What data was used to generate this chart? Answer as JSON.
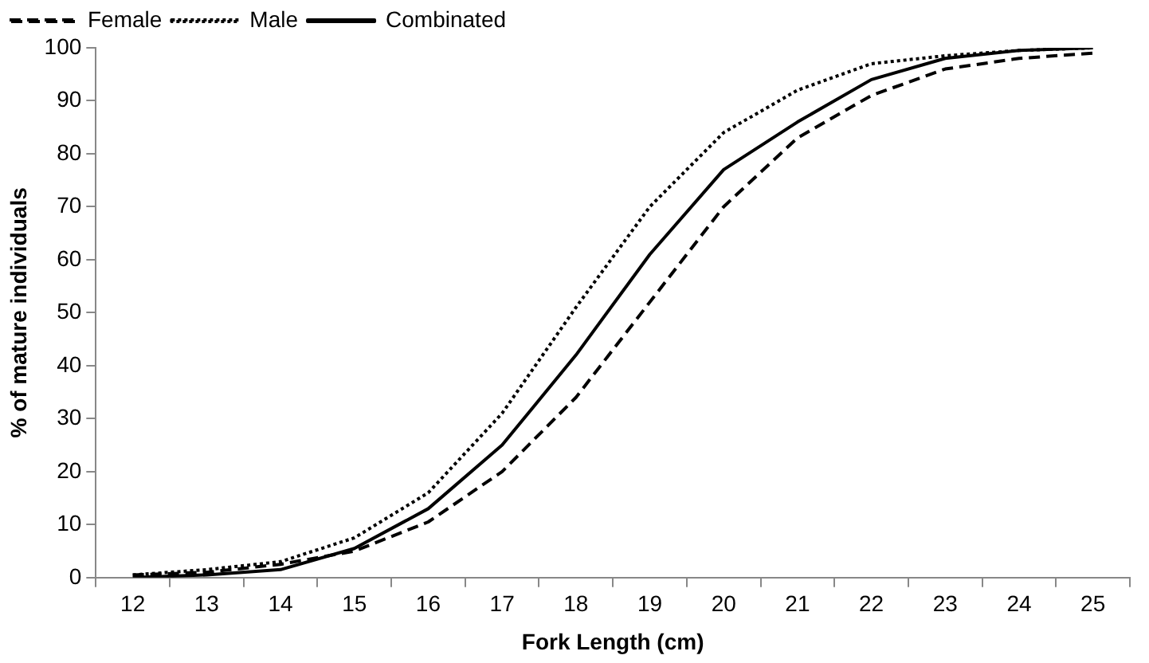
{
  "chart_data": {
    "type": "line",
    "xlabel": "Fork Length (cm)",
    "ylabel": "% of mature individuals",
    "categories": [
      "12",
      "13",
      "14",
      "15",
      "16",
      "17",
      "18",
      "19",
      "20",
      "21",
      "22",
      "23",
      "24",
      "25"
    ],
    "series": [
      {
        "name": "Female",
        "color": "#000000",
        "line_style": "dashed",
        "values": [
          0.5,
          1,
          2.5,
          5,
          10.5,
          20,
          34,
          52,
          70,
          83,
          91,
          96,
          98,
          99
        ]
      },
      {
        "name": "Male",
        "color": "#000000",
        "line_style": "dotted",
        "values": [
          0.5,
          1.5,
          3,
          7.5,
          16,
          31,
          51,
          70,
          84,
          92,
          97,
          98.5,
          99.5,
          100
        ]
      },
      {
        "name": "Combinated",
        "color": "#000000",
        "line_style": "solid",
        "values": [
          0,
          0.5,
          1.5,
          5.5,
          13,
          25,
          42,
          61,
          77,
          86,
          94,
          98,
          99.5,
          100
        ]
      }
    ],
    "ylim": [
      0,
      100
    ],
    "yticks": [
      0,
      10,
      20,
      30,
      40,
      50,
      60,
      70,
      80,
      90,
      100
    ],
    "grid": false,
    "legend": "top",
    "marker": "none"
  }
}
